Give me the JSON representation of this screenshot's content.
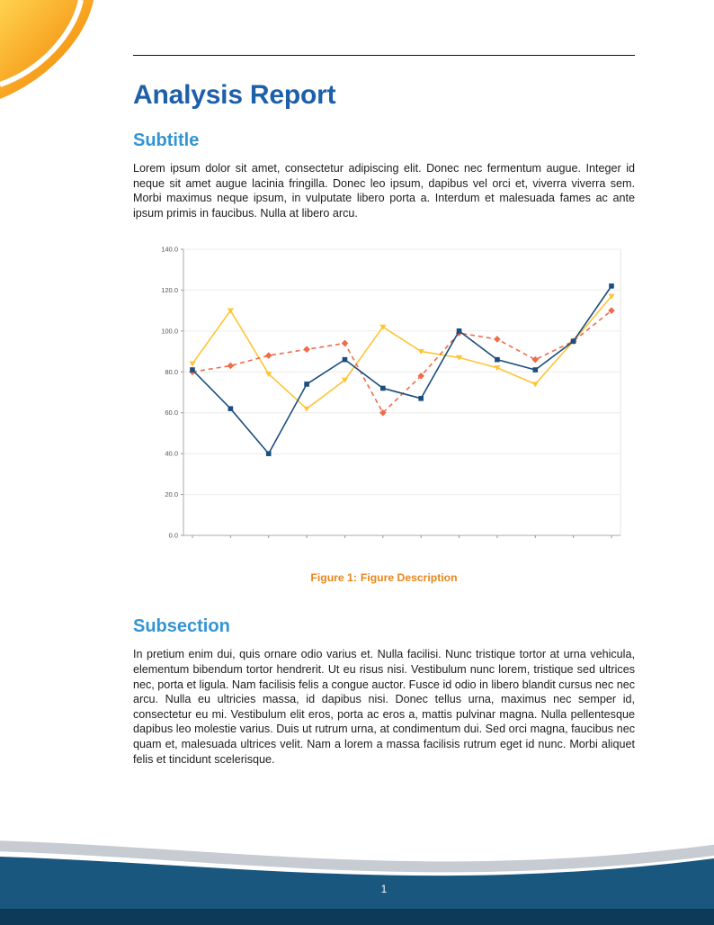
{
  "document": {
    "title": "Analysis Report",
    "section1": {
      "heading": "Subtitle",
      "paragraph": "Lorem ipsum dolor sit amet, consectetur adipiscing elit. Donec nec fermentum augue. Integer id neque sit amet augue lacinia fringilla. Donec leo ipsum, dapibus vel orci et, viverra viverra sem. Morbi maximus neque ipsum, in vulputate libero porta a. Interdum et malesuada fames ac ante ipsum primis in faucibus. Nulla at libero arcu."
    },
    "figure": {
      "caption_label": "Figure 1:",
      "caption_text": "Figure Description"
    },
    "section2": {
      "heading": "Subsection",
      "paragraph": "In pretium enim dui, quis ornare odio varius et. Nulla facilisi. Nunc tristique tortor at urna vehicula, elementum bibendum tortor hendrerit. Ut eu risus nisi. Vestibulum nunc lorem, tristique sed ultrices nec, porta et ligula. Nam facilisis felis a congue auctor. Fusce id odio in libero blandit cursus nec nec arcu. Nulla eu ultricies massa, id dapibus nisi. Donec tellus urna, maximus nec semper id, consectetur eu mi. Vestibulum elit eros, porta ac eros a, mattis pulvinar magna. Nulla pellentesque dapibus leo molestie varius. Duis ut rutrum urna, at condimentum dui. Sed orci magna, faucibus nec quam et, malesuada ultrices velit. Nam a lorem a massa facilisis rutrum eget id nunc. Morbi aliquet felis et tincidunt scelerisque."
    },
    "footer": {
      "page_number": "1"
    }
  },
  "colors": {
    "title_blue": "#1d5fa9",
    "heading_blue": "#3494d2",
    "caption_orange": "#e8861a",
    "footer_blue": "#1a577f",
    "footer_dark_blue": "#0d3a58",
    "decoration_orange": "#f08c00",
    "decoration_yellow": "#ffd34e"
  },
  "chart_data": {
    "type": "line",
    "title": "",
    "xlabel": "",
    "ylabel": "",
    "x": [
      1,
      2,
      3,
      4,
      5,
      6,
      7,
      8,
      9,
      10,
      11,
      12
    ],
    "series": [
      {
        "name": "yellow-series",
        "color": "#fdc536",
        "line_style": "solid",
        "marker": "triangle",
        "values": [
          84,
          110,
          79,
          62,
          76,
          102,
          90,
          87,
          82,
          74,
          95,
          117
        ]
      },
      {
        "name": "red-dashed-series",
        "color": "#ee6c4b",
        "line_style": "dashed",
        "marker": "diamond",
        "values": [
          80,
          83,
          88,
          91,
          94,
          60,
          78,
          99,
          96,
          86,
          95,
          110
        ]
      },
      {
        "name": "blue-series",
        "color": "#1b4e7e",
        "line_style": "solid",
        "marker": "square",
        "values": [
          81,
          62,
          40,
          74,
          86,
          72,
          67,
          100,
          86,
          81,
          95,
          122
        ]
      }
    ],
    "ylim": [
      0,
      140
    ],
    "yticks": [
      0,
      20,
      40,
      60,
      80,
      100,
      120,
      140
    ],
    "ytick_labels": [
      "0.0",
      "20.0",
      "40.0",
      "60.0",
      "80.0",
      "100.0",
      "120.0",
      "140.0"
    ],
    "grid": true,
    "legend": "none"
  }
}
